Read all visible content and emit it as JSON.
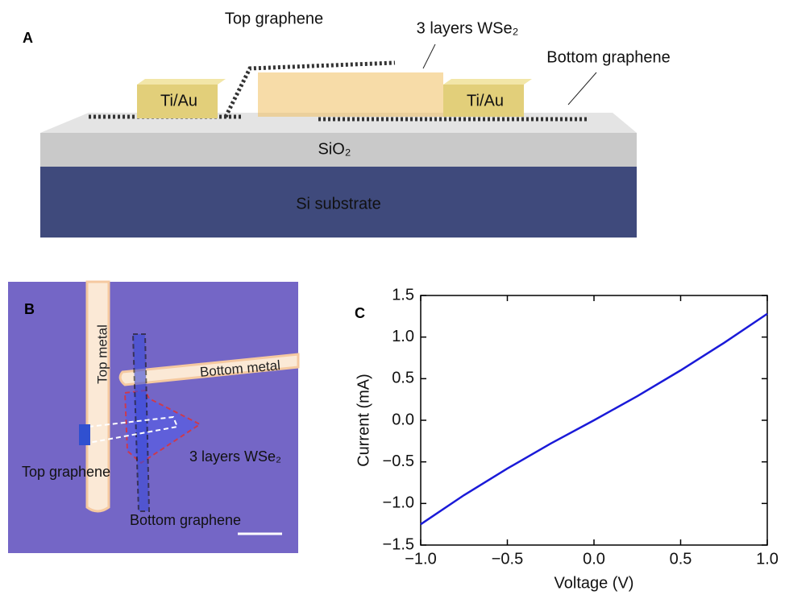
{
  "panel_a": {
    "letter": "A",
    "top_graphene": "Top graphene",
    "wse2": "3 layers WSe₂",
    "bottom_graphene": "Bottom graphene",
    "contact_left": "Ti/Au",
    "contact_right": "Ti/Au",
    "oxide": "SiO₂",
    "substrate": "Si substrate"
  },
  "panel_b": {
    "letter": "B",
    "top_metal": "Top metal",
    "bottom_metal": "Bottom metal",
    "top_graphene": "Top graphene",
    "wse2": "3 layers WSe₂",
    "bottom_graphene": "Bottom graphene"
  },
  "chart_data": {
    "type": "line",
    "letter": "C",
    "x_label": "Voltage (V)",
    "y_label": "Current (mA)",
    "x": [
      -1,
      -0.75,
      -0.5,
      -0.25,
      0,
      0.25,
      0.5,
      0.75,
      1
    ],
    "values": [
      -1.25,
      -0.9,
      -0.58,
      -0.28,
      0.0,
      0.29,
      0.6,
      0.93,
      1.28
    ],
    "color": "#1a1ad8",
    "xlim": [
      -1,
      1
    ],
    "ylim": [
      -1.5,
      1.5
    ],
    "xticks": [
      {
        "value": -1,
        "label": "−1.0"
      },
      {
        "value": -0.5,
        "label": "−0.5"
      },
      {
        "value": 0,
        "label": "0.0"
      },
      {
        "value": 0.5,
        "label": "0.5"
      },
      {
        "value": 1,
        "label": "1.0"
      }
    ],
    "yticks": [
      {
        "value": -1.5,
        "label": "−1.5"
      },
      {
        "value": -1,
        "label": "−1.0"
      },
      {
        "value": -0.5,
        "label": "−0.5"
      },
      {
        "value": 0,
        "label": "0.0"
      },
      {
        "value": 0.5,
        "label": "0.5"
      },
      {
        "value": 1,
        "label": "1.0"
      },
      1.5
    ]
  }
}
